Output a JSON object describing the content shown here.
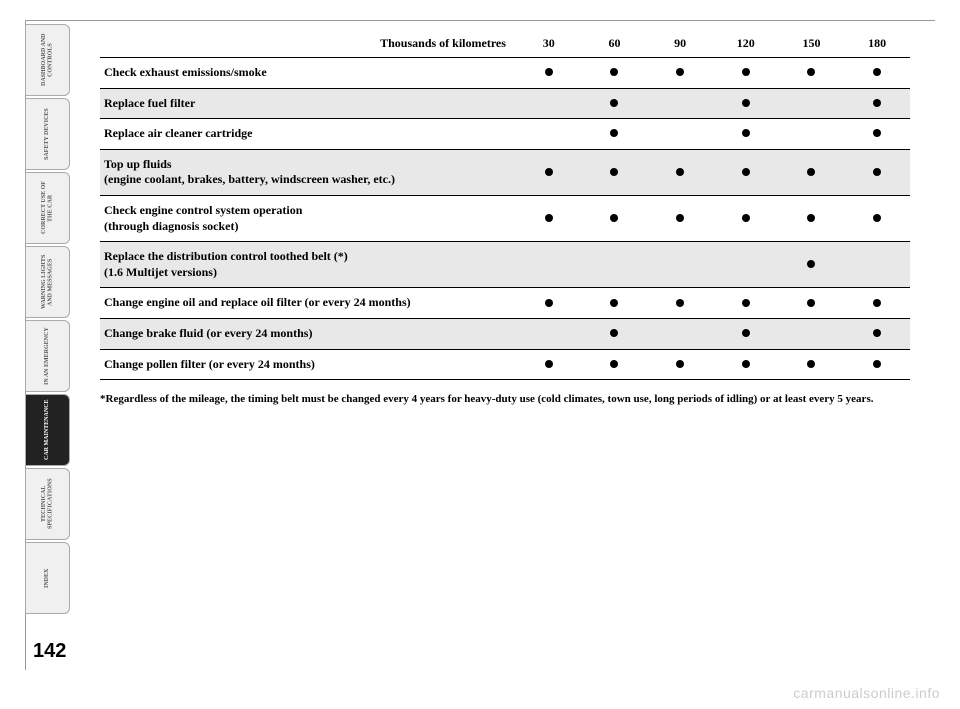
{
  "page_number": "142",
  "watermark": "carmanualsonline.info",
  "sidebar": {
    "tabs": [
      {
        "label": "DASHBOARD AND CONTROLS",
        "active": false
      },
      {
        "label": "SAFETY DEVICES",
        "active": false
      },
      {
        "label": "CORRECT USE OF THE CAR",
        "active": false
      },
      {
        "label": "WARNING LIGHTS AND MESSAGES",
        "active": false
      },
      {
        "label": "IN AN EMERGENCY",
        "active": false
      },
      {
        "label": "CAR MAINTENANCE",
        "active": true
      },
      {
        "label": "TECHNICAL SPECIFICATIONS",
        "active": false
      },
      {
        "label": "INDEX",
        "active": false
      }
    ]
  },
  "table": {
    "header_label": "Thousands of kilometres",
    "columns": [
      "30",
      "60",
      "90",
      "120",
      "150",
      "180"
    ],
    "rows": [
      {
        "label": "Check exhaust emissions/smoke",
        "marks": [
          true,
          true,
          true,
          true,
          true,
          true
        ]
      },
      {
        "label": "Replace fuel filter",
        "marks": [
          false,
          true,
          false,
          true,
          false,
          true
        ]
      },
      {
        "label": "Replace air cleaner cartridge",
        "marks": [
          false,
          true,
          false,
          true,
          false,
          true
        ]
      },
      {
        "label": "Top up fluids\n(engine coolant, brakes, battery, windscreen washer, etc.)",
        "marks": [
          true,
          true,
          true,
          true,
          true,
          true
        ]
      },
      {
        "label": "Check engine control system operation\n(through diagnosis socket)",
        "marks": [
          true,
          true,
          true,
          true,
          true,
          true
        ]
      },
      {
        "label": "Replace the distribution control toothed belt (*)\n(1.6 Multijet versions)",
        "marks": [
          false,
          false,
          false,
          false,
          true,
          false
        ]
      },
      {
        "label": "Change engine oil and replace oil filter (or every 24 months)",
        "marks": [
          true,
          true,
          true,
          true,
          true,
          true
        ]
      },
      {
        "label": "Change brake fluid (or every 24 months)",
        "marks": [
          false,
          true,
          false,
          true,
          false,
          true
        ]
      },
      {
        "label": "Change pollen filter (or every 24 months)",
        "marks": [
          true,
          true,
          true,
          true,
          true,
          true
        ]
      }
    ],
    "row_stripe_color": "#e8e8e8",
    "dot_color": "#000000"
  },
  "footnote": "*Regardless of the mileage, the timing belt must be changed every 4 years for heavy-duty use (cold climates, town use, long periods of idling) or at least every 5 years."
}
